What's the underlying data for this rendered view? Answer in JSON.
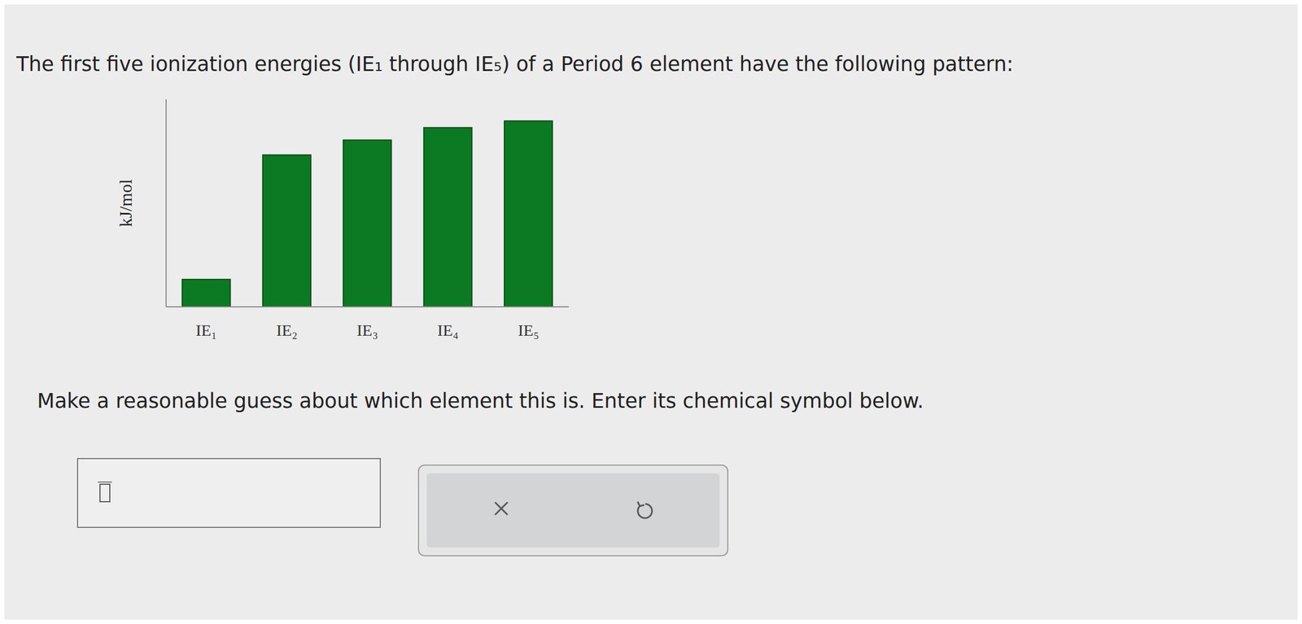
{
  "header": "The first five ionization energies (IE₁ through IE₅) of a Period 6 element have the following pattern:",
  "chart_data": {
    "type": "bar",
    "ylabel": "kJ/mol",
    "categories": [
      "IE₁",
      "IE₂",
      "IE₃",
      "IE₄",
      "IE₅"
    ],
    "values": [
      33,
      183,
      201,
      216,
      224
    ],
    "color": "#0b7a22",
    "ylim": [
      0,
      250
    ],
    "tick_labels": "x",
    "grid": false
  },
  "prompt": "Make a reasonable guess about which element this is. Enter its chemical symbol below."
}
